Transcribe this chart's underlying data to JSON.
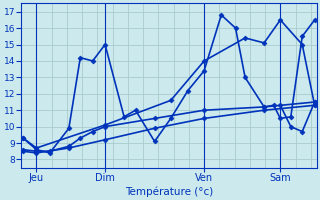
{
  "xlabel": "Température (°c)",
  "ylim": [
    7.5,
    17.5
  ],
  "yticks": [
    8,
    9,
    10,
    11,
    12,
    13,
    14,
    15,
    16,
    17
  ],
  "background_color": "#cce9ed",
  "grid_color": "#aacccc",
  "line_color": "#0033bb",
  "marker": "D",
  "markersize": 2.5,
  "linewidth": 1.2,
  "x_tick_labels": [
    "Jeu",
    "Dim",
    "Ven",
    "Sam"
  ],
  "x_tick_positions": [
    16,
    88,
    192,
    272
  ],
  "xlim": [
    0,
    310
  ],
  "series1_x": [
    2,
    16,
    30,
    50,
    62,
    75,
    88,
    108,
    120,
    140,
    157,
    175,
    192,
    210,
    225,
    235,
    255,
    265,
    272,
    283,
    295,
    308
  ],
  "series1_y": [
    9.3,
    8.6,
    8.4,
    9.9,
    14.2,
    14.0,
    15.0,
    10.6,
    11.0,
    9.1,
    10.5,
    12.2,
    13.4,
    16.8,
    16.0,
    13.0,
    11.2,
    11.3,
    10.5,
    10.6,
    15.5,
    16.5
  ],
  "series2_x": [
    2,
    16,
    30,
    50,
    62,
    75,
    88,
    140,
    192,
    255,
    308
  ],
  "series2_y": [
    8.6,
    8.5,
    8.5,
    8.8,
    9.3,
    9.7,
    10.0,
    10.5,
    11.0,
    11.2,
    11.5
  ],
  "series3_x": [
    2,
    16,
    50,
    88,
    140,
    192,
    255,
    308
  ],
  "series3_y": [
    8.5,
    8.4,
    8.7,
    9.2,
    9.9,
    10.5,
    11.0,
    11.3
  ],
  "series4_x": [
    2,
    16,
    88,
    157,
    192,
    235,
    255,
    272,
    295,
    308
  ],
  "series4_y": [
    9.3,
    8.7,
    10.1,
    11.6,
    14.0,
    15.4,
    15.1,
    16.5,
    15.0,
    11.3
  ],
  "series5_x": [
    272,
    283,
    295,
    308
  ],
  "series5_y": [
    11.3,
    10.0,
    9.7,
    11.5
  ]
}
